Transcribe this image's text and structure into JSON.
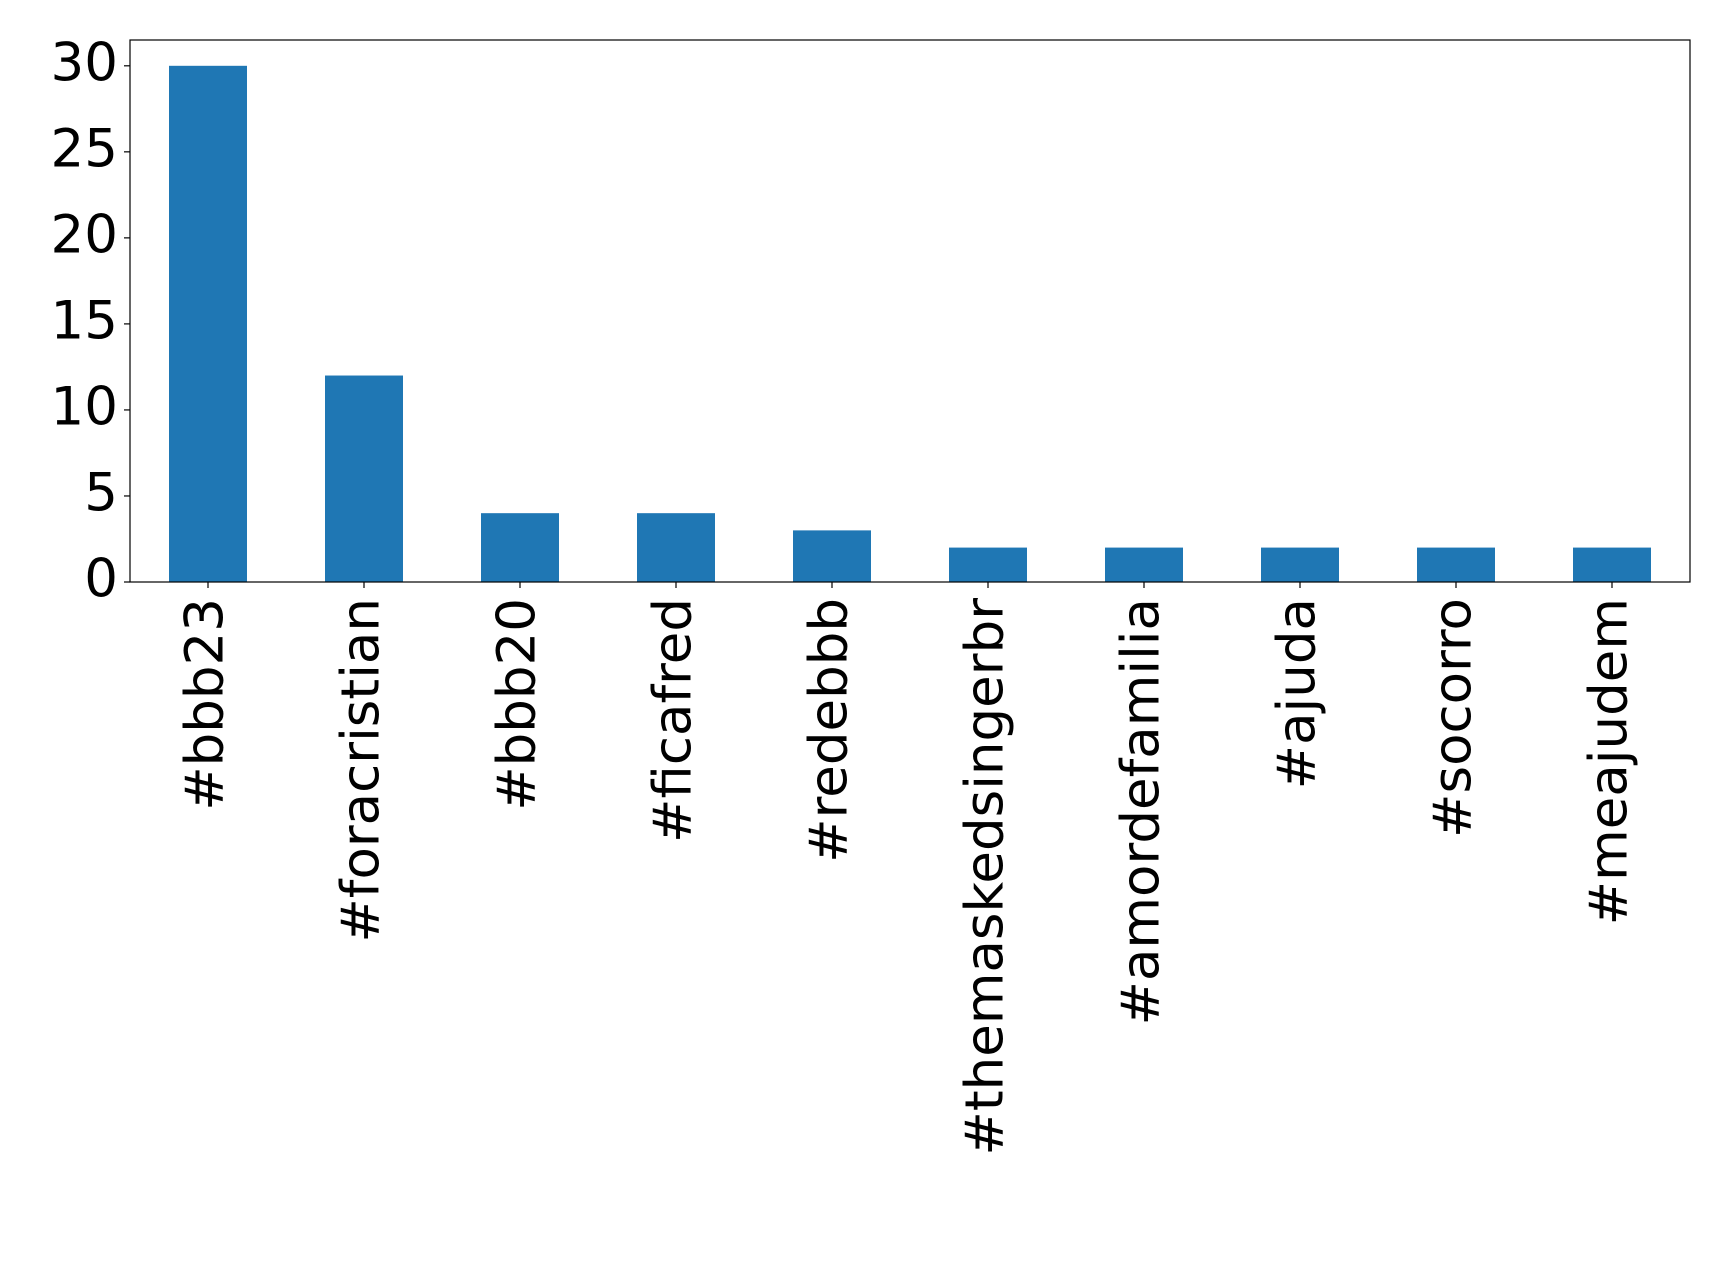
{
  "chart_data": {
    "type": "bar",
    "categories": [
      "#bbb23",
      "#foracristian",
      "#bbb20",
      "#ficafred",
      "#redebbb",
      "#themaskedsingerbr",
      "#amordefamilia",
      "#ajuda",
      "#socorro",
      "#meajudem"
    ],
    "values": [
      30,
      12,
      4,
      4,
      3,
      2,
      2,
      2,
      2,
      2
    ],
    "color": "#1f77b4",
    "ylim": [
      0,
      31.5
    ],
    "yticks": [
      0,
      5,
      10,
      15,
      20,
      25,
      30
    ],
    "grid": false
  }
}
